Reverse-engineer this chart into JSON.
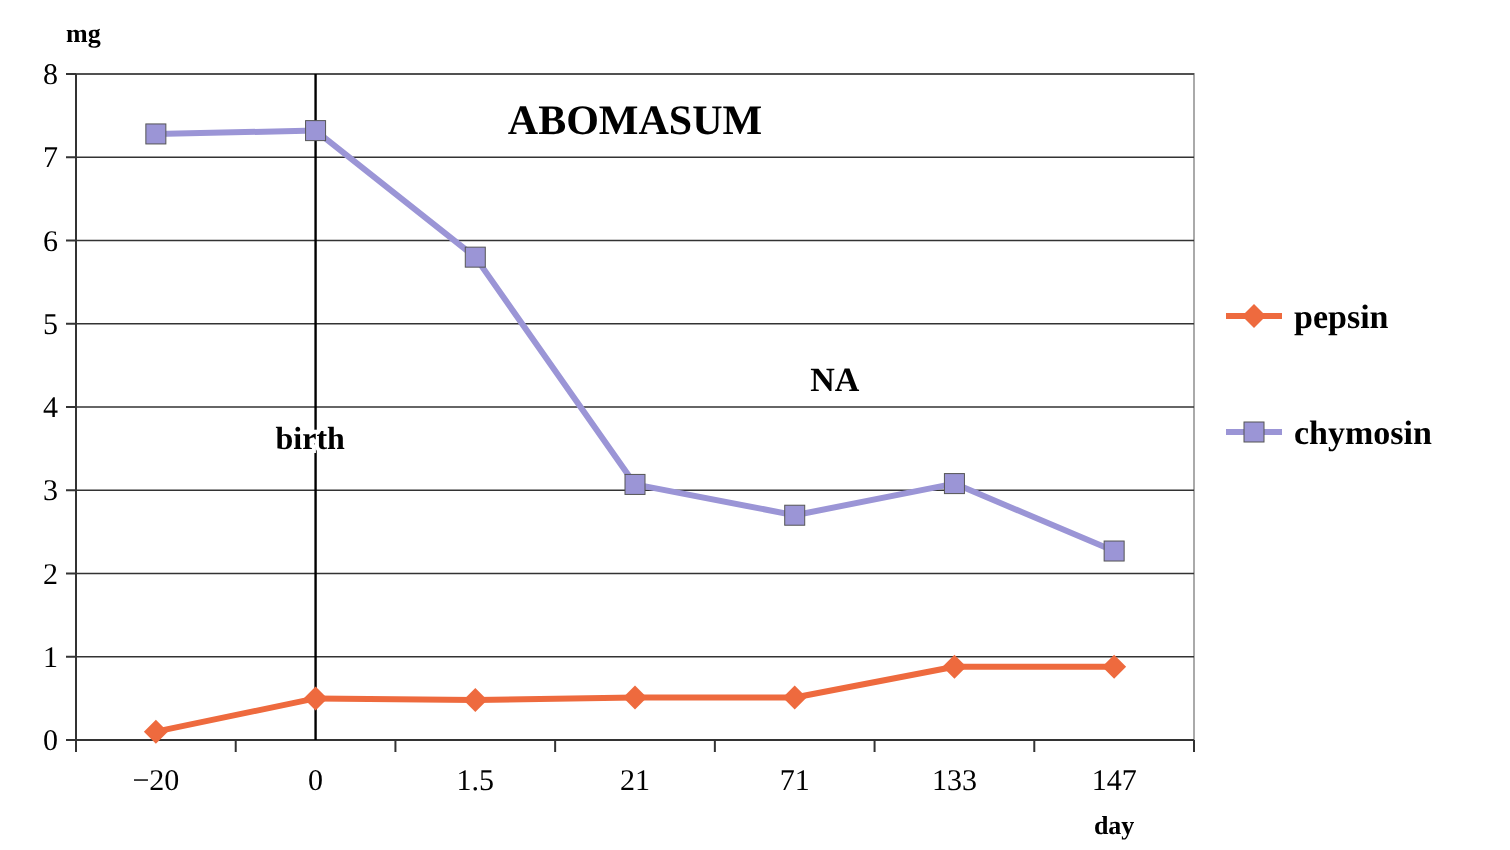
{
  "chart_data": {
    "type": "line",
    "title": "ABOMASUM",
    "ylabel": "mg",
    "xlabel": "day",
    "categories": [
      "−20",
      "0",
      "1.5",
      "21",
      "71",
      "133",
      "147"
    ],
    "series": [
      {
        "name": "pepsin",
        "color": "#ee6a3e",
        "marker": "diamond",
        "values": [
          0.1,
          0.5,
          0.48,
          0.51,
          0.51,
          0.88,
          0.88
        ]
      },
      {
        "name": "chymosin",
        "color": "#9b95d6",
        "marker": "square",
        "values": [
          7.28,
          7.32,
          5.8,
          3.07,
          2.7,
          3.08,
          2.27
        ]
      }
    ],
    "ylim": [
      0,
      8
    ],
    "yticks": [
      0,
      1,
      2,
      3,
      4,
      5,
      6,
      7,
      8
    ],
    "grid": "y",
    "legend": "right",
    "ref_lines": [
      {
        "axis": "x",
        "value": "0",
        "label": "birth",
        "color": "#000000"
      }
    ],
    "annotations": [
      "NA"
    ]
  }
}
